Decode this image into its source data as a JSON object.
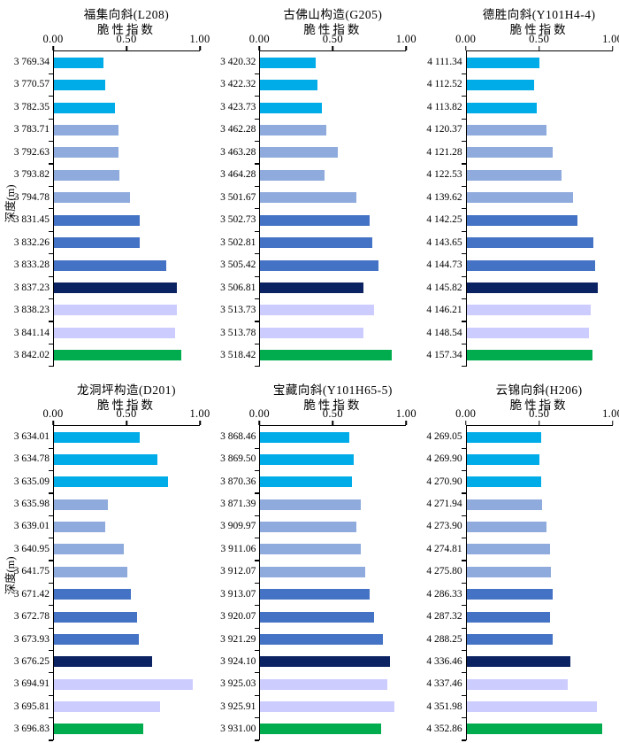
{
  "figure": {
    "ylabel": "深度(m)",
    "xlabel": "脆性指数",
    "xtick_labels": [
      "0.00",
      "0.50",
      "1.00"
    ],
    "axis_color": "#000000",
    "background": "#ffffff",
    "palette": {
      "skyblue": "#00ACE8",
      "grayblue": "#8FAADC",
      "royalblue": "#4472C4",
      "navy": "#0B2263",
      "lavender": "#CCCCFF",
      "green": "#00AC4D"
    },
    "color_pattern": [
      "skyblue",
      "skyblue",
      "skyblue",
      "grayblue",
      "grayblue",
      "grayblue",
      "grayblue",
      "royalblue",
      "royalblue",
      "royalblue",
      "navy",
      "lavender",
      "lavender",
      "green"
    ]
  },
  "chart_data": [
    {
      "type": "bar",
      "orientation": "horizontal",
      "title": "福集向斜(L208)",
      "xlabel": "脆性指数",
      "ylabel": "深度(m)",
      "xlim": [
        0,
        1
      ],
      "xticks": [
        0,
        0.5,
        1
      ],
      "categories": [
        "3 769.34",
        "3 770.57",
        "3 782.35",
        "3 783.71",
        "3 792.63",
        "3 793.82",
        "3 794.78",
        "3 831.45",
        "3 832.26",
        "3 833.28",
        "3 837.23",
        "3 838.23",
        "3 841.14",
        "3 842.02"
      ],
      "values": [
        0.34,
        0.35,
        0.42,
        0.44,
        0.44,
        0.45,
        0.52,
        0.59,
        0.59,
        0.77,
        0.84,
        0.84,
        0.83,
        0.87
      ]
    },
    {
      "type": "bar",
      "orientation": "horizontal",
      "title": "古佛山构造(G205)",
      "xlabel": "脆性指数",
      "ylabel": "深度(m)",
      "xlim": [
        0,
        1
      ],
      "xticks": [
        0,
        0.5,
        1
      ],
      "categories": [
        "3 420.32",
        "3 422.32",
        "3 423.73",
        "3 462.28",
        "3 463.28",
        "3 464.28",
        "3 501.67",
        "3 502.73",
        "3 502.81",
        "3 505.42",
        "3 506.81",
        "3 513.73",
        "3 513.78",
        "3 518.42"
      ],
      "values": [
        0.38,
        0.39,
        0.42,
        0.45,
        0.53,
        0.44,
        0.66,
        0.75,
        0.77,
        0.81,
        0.71,
        0.78,
        0.71,
        0.9
      ]
    },
    {
      "type": "bar",
      "orientation": "horizontal",
      "title": "德胜向斜(Y101H4-4)",
      "xlabel": "脆性指数",
      "ylabel": "深度(m)",
      "xlim": [
        0,
        1
      ],
      "xticks": [
        0,
        0.5,
        1
      ],
      "categories": [
        "4 111.34",
        "4 112.52",
        "4 113.82",
        "4 120.37",
        "4 121.28",
        "4 122.53",
        "4 139.62",
        "4 142.25",
        "4 143.65",
        "4 144.73",
        "4 145.82",
        "4 146.21",
        "4 148.54",
        "4 157.34"
      ],
      "values": [
        0.5,
        0.46,
        0.48,
        0.55,
        0.59,
        0.65,
        0.73,
        0.76,
        0.87,
        0.88,
        0.9,
        0.85,
        0.84,
        0.86
      ]
    },
    {
      "type": "bar",
      "orientation": "horizontal",
      "title": "龙洞坪构造(D201)",
      "xlabel": "脆性指数",
      "ylabel": "深度(m)",
      "xlim": [
        0,
        1
      ],
      "xticks": [
        0,
        0.5,
        1
      ],
      "categories": [
        "3 634.01",
        "3 634.78",
        "3 635.09",
        "3 635.98",
        "3 639.01",
        "3 640.95",
        "3 641.75",
        "3 671.42",
        "3 672.78",
        "3 673.93",
        "3 676.25",
        "3 694.91",
        "3 695.81",
        "3 696.83"
      ],
      "values": [
        0.59,
        0.71,
        0.78,
        0.37,
        0.35,
        0.48,
        0.5,
        0.53,
        0.57,
        0.58,
        0.67,
        0.95,
        0.73,
        0.61
      ]
    },
    {
      "type": "bar",
      "orientation": "horizontal",
      "title": "宝藏向斜(Y101H65-5)",
      "xlabel": "脆性指数",
      "ylabel": "深度(m)",
      "xlim": [
        0,
        1
      ],
      "xticks": [
        0,
        0.5,
        1
      ],
      "categories": [
        "3 868.46",
        "3 869.50",
        "3 870.36",
        "3 871.39",
        "3 909.97",
        "3 911.06",
        "3 912.07",
        "3 913.07",
        "3 920.07",
        "3 921.29",
        "3 924.10",
        "3 925.03",
        "3 925.91",
        "3 931.00"
      ],
      "values": [
        0.61,
        0.64,
        0.63,
        0.69,
        0.66,
        0.69,
        0.72,
        0.75,
        0.78,
        0.84,
        0.89,
        0.87,
        0.92,
        0.83
      ]
    },
    {
      "type": "bar",
      "orientation": "horizontal",
      "title": "云锦向斜(H206)",
      "xlabel": "脆性指数",
      "ylabel": "深度(m)",
      "xlim": [
        0,
        1
      ],
      "xticks": [
        0,
        0.5,
        1
      ],
      "categories": [
        "4 269.05",
        "4 269.90",
        "4 270.90",
        "4 271.94",
        "4 273.90",
        "4 274.81",
        "4 275.80",
        "4 286.33",
        "4 287.32",
        "4 288.25",
        "4 336.46",
        "4 337.46",
        "4 351.98",
        "4 352.86"
      ],
      "values": [
        0.51,
        0.5,
        0.51,
        0.52,
        0.55,
        0.57,
        0.58,
        0.59,
        0.57,
        0.59,
        0.71,
        0.69,
        0.89,
        0.93
      ]
    }
  ]
}
